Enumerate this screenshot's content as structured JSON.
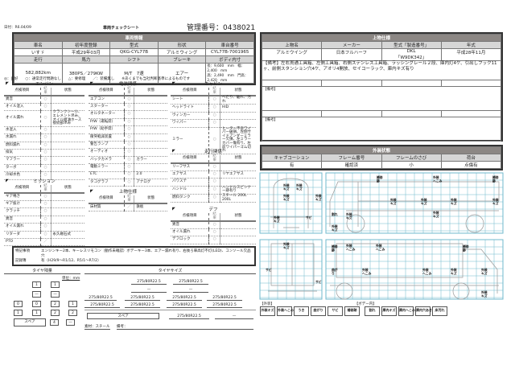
{
  "header": {
    "date": "日付：R6.04/09",
    "doc_title": "車両チェックシート",
    "control_no": "管理番号：0438021"
  },
  "vehicle": {
    "section": "車両情報",
    "labels1": [
      "車名",
      "初年度登録",
      "型式",
      "形状",
      "車台番号"
    ],
    "values1": [
      "いすゞ",
      "平成29年03月",
      "QKG-CYL77B",
      "アルミウィング",
      "CYL77B-7001965"
    ],
    "labels2": [
      "走行",
      "馬力",
      "シフト",
      "ブレーキ",
      "ボディ内寸"
    ],
    "values2": [
      "582,882km",
      "380PS／279KW",
      "M/T　7速",
      "エアー"
    ],
    "body_dims": [
      "長：9,600　mm　幅：2,400　mm",
      "高：2,490　mm　門高：2,420　mm"
    ]
  },
  "legend": "◎：良好　　○：通常走行問題なし　　△：要修理　　／：装備無し　　※あくまでも当社判断基準によるものです",
  "check_headers": [
    "点検項目",
    "結果",
    "状態"
  ],
  "engine": {
    "title": "エンジン",
    "rows": [
      [
        "異音",
        "○",
        ""
      ],
      [
        "オイル混入",
        "○",
        ""
      ],
      [
        "オイル漏れ",
        "○",
        "クランクシール、エレメント滲み、オイル組油ホース接続部滲み"
      ],
      [
        "水混入",
        "○",
        ""
      ],
      [
        "水漏れ",
        "○",
        ""
      ],
      [
        "燃料漏れ",
        "○",
        ""
      ],
      [
        "排気",
        "○",
        ""
      ],
      [
        "マフラー",
        "○",
        ""
      ],
      [
        "ターボ",
        "○",
        ""
      ],
      [
        "冷却水色",
        "○",
        ""
      ]
    ]
  },
  "mission": {
    "title": "ミッション",
    "rows": [
      [
        "ギア鳴き",
        "○",
        ""
      ],
      [
        "ギア抜け",
        "○",
        ""
      ],
      [
        "クラッチ",
        "○",
        ""
      ],
      [
        "異音",
        "○",
        ""
      ],
      [
        "オイル漏れ",
        "○",
        ""
      ],
      [
        "リターダ",
        "○",
        "永久磁石式"
      ],
      [
        "PTO",
        "／",
        ""
      ]
    ]
  },
  "electrical": {
    "title": "電装関係",
    "rows": [
      [
        "エアコン",
        "○",
        ""
      ],
      [
        "スターター",
        "○",
        ""
      ],
      [
        "オルタネーター",
        "○",
        ""
      ],
      [
        "P/W（運転席）",
        "○",
        ""
      ],
      [
        "P/W（助手席）",
        "○",
        ""
      ],
      [
        "衝突軽減装置",
        "○",
        ""
      ],
      [
        "警告ランプ",
        "○",
        ""
      ],
      [
        "オーディオ",
        "○",
        ""
      ],
      [
        "バックカメラ",
        "○",
        "カラー"
      ],
      [
        "電動ミラー",
        "○",
        ""
      ],
      [
        "ETC",
        "○",
        "2.0"
      ],
      [
        "タコグラフ",
        "○",
        "アナログ"
      ]
    ]
  },
  "upper": {
    "title": "上物仕様",
    "rows": [
      [
        "床材質",
        "／",
        "鉄板"
      ]
    ]
  },
  "cabin": {
    "title": "キャビン",
    "rows": [
      [
        "シート",
        "○",
        "へたり、破れ、汚れ"
      ],
      [
        "ヘッドライト",
        "○",
        "HID"
      ],
      [
        "ウィンカー",
        "○",
        ""
      ],
      [
        "ワイパー",
        "○",
        ""
      ],
      [
        "ミラー",
        "○",
        "ヒーター不良ワイパー破損、左側サイドアンダーミラー欠損、左ミラーカバー傷有り、左前ワイパーゴム切れ"
      ]
    ]
  },
  "running": {
    "title": "走行関係",
    "rows": [
      [
        "リーフサス",
        "○",
        ""
      ],
      [
        "エアサス",
        "○",
        "リヤエアサス"
      ],
      [
        "パワステ",
        "○",
        ""
      ],
      [
        "ハンドル",
        "○",
        "ハンドルスピンナー跡有り"
      ],
      [
        "燃料タンク",
        "○",
        "スチール 200L 200L"
      ]
    ]
  },
  "diff": {
    "title": "デフ",
    "rows": [
      [
        "異音",
        "○",
        ""
      ],
      [
        "オイル漏れ",
        "○",
        ""
      ],
      [
        "デフロック",
        "○",
        ""
      ]
    ]
  },
  "notes": {
    "special_label": "特記事項",
    "special": "エンジンキー2本、キーレスリモコン（動作未確認）ボデーキー3本、エアー漏れ有り、右後ろ車高灯不灯(LED)、コンソール欠品穴",
    "record_label": "記録簿",
    "record": "有（H29/9～R1/12、R5/1～R7/2）"
  },
  "tire_remain": {
    "title": "タイヤ残量",
    "unit": "単位：mm",
    "row1": [
      "1",
      "1"
    ],
    "row2": [
      "—",
      "—"
    ],
    "row3": [
      "0",
      "0",
      "2",
      "1"
    ],
    "row4": [
      "1",
      "1",
      "2",
      "2"
    ],
    "spare_label": "スペア",
    "spare": [
      "4",
      "—"
    ]
  },
  "tire_size": {
    "title": "タイヤサイズ",
    "row1": [
      "275/80R22.5",
      "275/80R22.5"
    ],
    "row2": [
      "—",
      "—"
    ],
    "row3": [
      "275/80R22.5",
      "275/80R22.5",
      "275/80R22.5",
      "275/80R22.5"
    ],
    "row4": [
      "275/80R22.5",
      "275/80R22.5",
      "275/80R22.5",
      "275/80R22.5"
    ],
    "spare_label": "スペア",
    "spare": [
      "275/80R22.5",
      "—"
    ],
    "material": "素材：スチール",
    "remarks": "備考："
  },
  "body_spec": {
    "section": "上物仕様",
    "labels": [
      "上物名",
      "メーカー",
      "型式「製造番号」",
      "年式"
    ],
    "values": [
      "アルミウイング",
      "日本フルハーフ",
      "DKL\n「W9DK342」",
      "平成28年11月"
    ],
    "remarks1": "【備考】左右貫通工具箱、左側工具箱、右側ステンレス工具箱、ラッシングレール２段、庫内灯4ケ、引出しフック11ヶ、前側スタンション穴4ケ、アオリ4開放、セイコーラック、庫内キズ有り",
    "remarks2": "【備考】",
    "remarks3": "【備考】"
  },
  "exterior": {
    "section": "外装状態",
    "labels": [
      "キャブコーション",
      "フレーム番号",
      "フレームのさび",
      "荷台"
    ],
    "values": [
      "有",
      "確認済",
      "小",
      "点傷有"
    ]
  },
  "diagram": {
    "grid_color": "#6fb8cc",
    "front": [
      "外装キズ",
      "外装キズ",
      "外装キズ",
      "外装キズ",
      "外装キズ",
      "サビ"
    ],
    "side_top": [
      "補修跡",
      "外装へこみ",
      "補修跡",
      "外装キズ",
      "外装キズ",
      "外装キズ",
      "外装キズ",
      "割れ",
      "外装キズ",
      "外装キズ",
      "外装キズ"
    ],
    "rear": [
      "外装キズ",
      "サビ",
      "サビ"
    ],
    "side_bottom": [
      "補修跡",
      "外装へこみ",
      "外装へこみ",
      "補修跡",
      "曲がり",
      "外装へこみ",
      "外装へこみ",
      "外装キズ",
      "外装キズ",
      "外装キズ",
      "外装キズ"
    ]
  },
  "damage_legend": {
    "exterior_label": "【外装】",
    "body_label": "【ボデー内】",
    "exterior": [
      "外装キズ",
      "外装へこみ",
      "うき",
      "曲がり",
      "サビ",
      "補修跡"
    ],
    "body": [
      "割れ",
      "庫内キズ",
      "庫内へこみ",
      "庫内穴あき",
      "床汚れ"
    ]
  }
}
